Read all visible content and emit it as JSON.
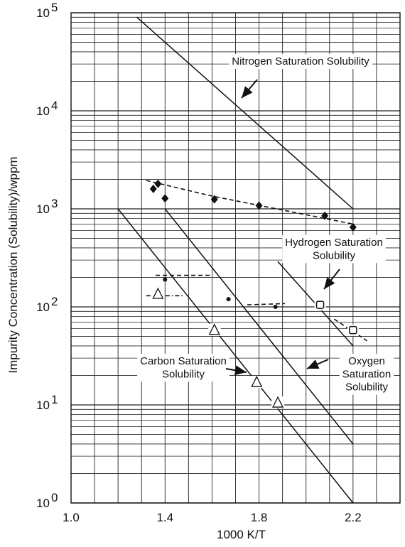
{
  "chart_data": {
    "type": "scatter",
    "xlabel": "1000 K/T",
    "ylabel": "Impurity Concentration (Solubility)/wppm",
    "xlim": [
      1.0,
      2.4
    ],
    "ylim": [
      1,
      100000
    ],
    "y_scale": "log",
    "grid": true,
    "x_ticks": [
      "1.0",
      "1.4",
      "1.8",
      "2.2"
    ],
    "x_tick_values": [
      1.0,
      1.4,
      1.8,
      2.2
    ],
    "y_ticks": [
      {
        "base": "10",
        "exp": "0",
        "value": 1
      },
      {
        "base": "10",
        "exp": "1",
        "value": 10
      },
      {
        "base": "10",
        "exp": "2",
        "value": 100
      },
      {
        "base": "10",
        "exp": "3",
        "value": 1000
      },
      {
        "base": "10",
        "exp": "4",
        "value": 10000
      },
      {
        "base": "10",
        "exp": "5",
        "value": 100000
      }
    ],
    "lines": [
      {
        "label": "Nitrogen Saturation Solubility",
        "style": "solid",
        "points": [
          [
            1.28,
            90000
          ],
          [
            2.2,
            1000
          ]
        ]
      },
      {
        "label": "Carbon Saturation Solubility",
        "style": "solid",
        "points": [
          [
            1.2,
            1000
          ],
          [
            2.2,
            1
          ]
        ]
      },
      {
        "label": "Oxygen Saturation Solubility",
        "style": "solid",
        "points": [
          [
            1.4,
            1000
          ],
          [
            2.2,
            4
          ]
        ]
      },
      {
        "label": "Hydrogen Saturation Solubility",
        "style": "solid",
        "points": [
          [
            1.88,
            290
          ],
          [
            2.2,
            40
          ]
        ]
      }
    ],
    "fits": [
      {
        "style": "dashed",
        "points": [
          [
            1.32,
            1950
          ],
          [
            1.6,
            1350
          ],
          [
            2.2,
            700
          ]
        ]
      },
      {
        "style": "dashed",
        "points": [
          [
            1.36,
            210
          ],
          [
            1.6,
            210
          ]
        ]
      },
      {
        "style": "dashdot",
        "points": [
          [
            1.32,
            130
          ],
          [
            1.48,
            130
          ]
        ]
      },
      {
        "style": "dashed",
        "points": [
          [
            1.75,
            105
          ],
          [
            1.91,
            108
          ]
        ]
      },
      {
        "style": "dashed",
        "points": [
          [
            2.12,
            75
          ],
          [
            2.26,
            45
          ]
        ]
      }
    ],
    "series": [
      {
        "marker": "diamond",
        "points": [
          [
            1.35,
            1600
          ],
          [
            1.37,
            1800
          ],
          [
            1.4,
            1280
          ],
          [
            1.61,
            1250
          ],
          [
            1.8,
            1080
          ],
          [
            2.08,
            850
          ],
          [
            2.2,
            650
          ]
        ]
      },
      {
        "marker": "dot",
        "points": [
          [
            1.4,
            190
          ],
          [
            1.67,
            120
          ],
          [
            1.87,
            100
          ]
        ]
      },
      {
        "marker": "triangle",
        "points": [
          [
            1.37,
            135
          ],
          [
            1.61,
            58
          ],
          [
            1.79,
            17
          ],
          [
            1.88,
            10.5
          ]
        ]
      },
      {
        "marker": "square",
        "points": [
          [
            2.06,
            105
          ],
          [
            2.2,
            58
          ]
        ]
      }
    ],
    "annotations": [
      {
        "lines": [
          "Nitrogen Saturation Solubility"
        ]
      },
      {
        "lines": [
          "Hydrogen Saturation",
          "Solubility"
        ]
      },
      {
        "lines": [
          "Carbon Saturation",
          "Solubility"
        ]
      },
      {
        "lines": [
          "Oxygen",
          "Saturation",
          "Solubility"
        ]
      }
    ]
  }
}
